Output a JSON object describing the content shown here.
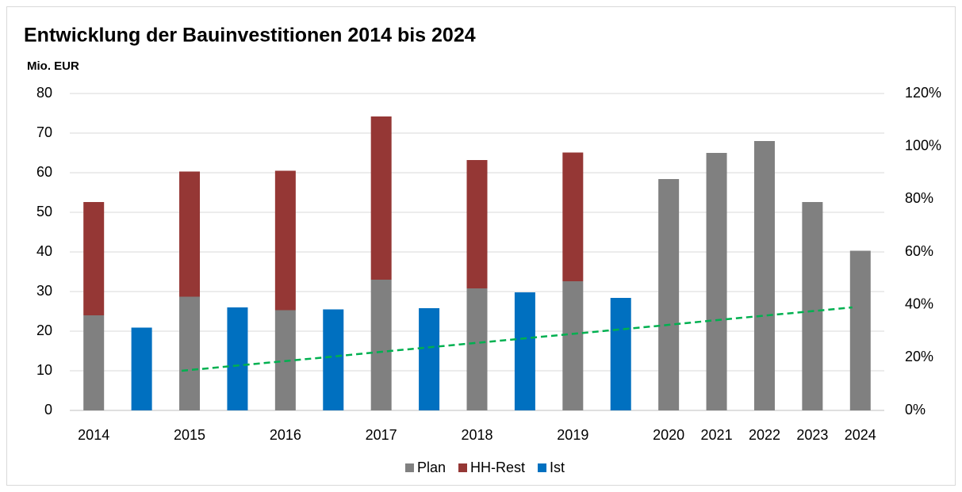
{
  "chart_data": {
    "type": "bar",
    "title": "Entwicklung der Bauinvestitionen 2014 bis 2024",
    "y_label": "Mio. EUR",
    "categories": [
      "2014",
      null,
      "2015",
      null,
      "2016",
      null,
      "2017",
      null,
      "2018",
      null,
      "2019",
      null,
      "2020",
      "2021",
      "2022",
      "2023",
      "2024"
    ],
    "series": [
      {
        "name": "Plan",
        "color": "#808080",
        "values": [
          24,
          null,
          28.7,
          null,
          25.3,
          null,
          33,
          null,
          30.8,
          null,
          32.6,
          null,
          58.4,
          65,
          68,
          52.6,
          40.3
        ]
      },
      {
        "name": "HH-Rest",
        "color": "#953735",
        "values": [
          28.6,
          null,
          31.6,
          null,
          35.2,
          null,
          41.2,
          null,
          32.4,
          null,
          32.5,
          null,
          null,
          null,
          null,
          null,
          null
        ]
      },
      {
        "name": "Ist",
        "color": "#0070c0",
        "values": [
          null,
          20.9,
          null,
          26,
          null,
          25.5,
          null,
          25.8,
          null,
          29.8,
          null,
          28.4,
          null,
          null,
          null,
          null,
          null
        ]
      }
    ],
    "trendline": {
      "axis": "y2",
      "color": "#00b050",
      "dashed": true,
      "values": [
        null,
        null,
        15,
        16.7,
        18.4,
        20.1,
        21.9,
        23.6,
        25.3,
        27,
        28.7,
        30.4,
        32.1,
        33.9,
        35.6,
        37.3,
        39
      ]
    },
    "stacked": true,
    "ylim": [
      0,
      80
    ],
    "yticks": [
      0,
      10,
      20,
      30,
      40,
      50,
      60,
      70,
      80
    ],
    "y2lim": [
      0,
      120
    ],
    "y2ticks": [
      {
        "value": 0,
        "label": "0%"
      },
      {
        "value": 20,
        "label": "20%"
      },
      {
        "value": 40,
        "label": "40%"
      },
      {
        "value": 60,
        "label": "60%"
      },
      {
        "value": 80,
        "label": "80%"
      },
      {
        "value": 100,
        "label": "100%"
      },
      {
        "value": 120,
        "label": "120%"
      }
    ],
    "grid": true,
    "legend": "bottom"
  }
}
